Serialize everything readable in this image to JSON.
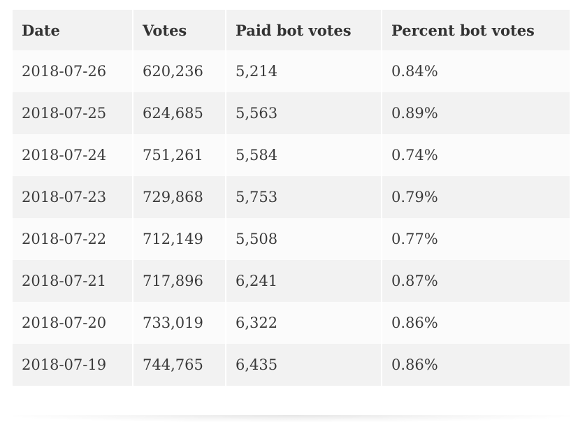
{
  "table": {
    "headers": [
      "Date",
      "Votes",
      "Paid bot votes",
      "Percent bot votes"
    ],
    "rows": [
      [
        "2018-07-26",
        "620,236",
        "5,214",
        "0.84%"
      ],
      [
        "2018-07-25",
        "624,685",
        "5,563",
        "0.89%"
      ],
      [
        "2018-07-24",
        "751,261",
        "5,584",
        "0.74%"
      ],
      [
        "2018-07-23",
        "729,868",
        "5,753",
        "0.79%"
      ],
      [
        "2018-07-22",
        "712,149",
        "5,508",
        "0.77%"
      ],
      [
        "2018-07-21",
        "717,896",
        "6,241",
        "0.87%"
      ],
      [
        "2018-07-20",
        "733,019",
        "6,322",
        "0.86%"
      ],
      [
        "2018-07-19",
        "744,765",
        "6,435",
        "0.86%"
      ]
    ]
  },
  "colors": {
    "header_background": "#f2f2f2",
    "shaded_row": "#f2f2f2",
    "light_row": "#fbfbfb",
    "text": "#333333"
  }
}
